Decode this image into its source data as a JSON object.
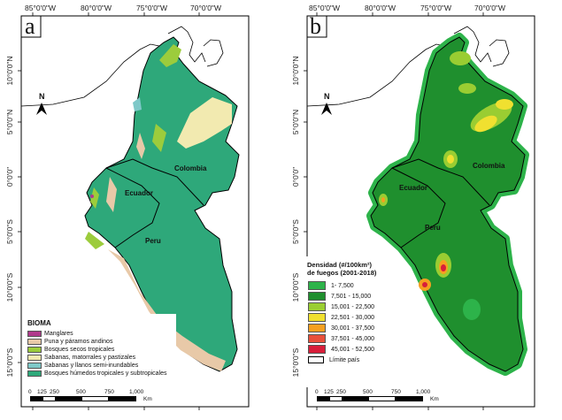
{
  "lon_ticks": [
    "85°0'0\"W",
    "80°0'0\"W",
    "75°0'0\"W",
    "70°0'0\"W"
  ],
  "lat_ticks": [
    "10°0'0\"N",
    "5°0'0\"N",
    "0°0'0\"",
    "5°0'0\"S",
    "10°0'0\"S",
    "15°0'0\"S"
  ],
  "panel_a": {
    "letter": "a",
    "north": "N",
    "labels": {
      "colombia": "Colombia",
      "ecuador": "Ecuador",
      "peru": "Peru"
    },
    "legend": {
      "title": "BIOMA",
      "items": [
        {
          "label": "Manglares",
          "color": "#b03a8c"
        },
        {
          "label": "Puna y páramos andinos",
          "color": "#e8c9a8"
        },
        {
          "label": "Bosques secos tropicales",
          "color": "#9ccc3c"
        },
        {
          "label": "Sabanas, matorrales y pastizales",
          "color": "#f2eab0"
        },
        {
          "label": "Sabanas y llanos semi-inundables",
          "color": "#7ec8c8"
        },
        {
          "label": "Bosques húmedos tropicales y subtropicales",
          "color": "#2ea87a"
        }
      ]
    },
    "scale": {
      "ticks": [
        "0",
        "125",
        "250",
        "500",
        "750",
        "1,000"
      ],
      "unit": "Km"
    }
  },
  "panel_b": {
    "letter": "b",
    "north": "N",
    "labels": {
      "colombia": "Colombia",
      "ecuador": "Ecuador",
      "peru": "Peru"
    },
    "legend": {
      "title_line1": "Densidad (#/100km²)",
      "title_line2": "de fuegos (2001-2018)",
      "items": [
        {
          "label": "1- 7,500",
          "color": "#2db34a"
        },
        {
          "label": "7,501 - 15,000",
          "color": "#1f8f2e"
        },
        {
          "label": "15,001 - 22,500",
          "color": "#9acd32"
        },
        {
          "label": "22,501 - 30,000",
          "color": "#f0e030"
        },
        {
          "label": "30,001 - 37,500",
          "color": "#f5a020"
        },
        {
          "label": "37,501 - 45,000",
          "color": "#e8503a"
        },
        {
          "label": "45,001 - 52,500",
          "color": "#d81e3a"
        }
      ],
      "boundary_label": "Límite país"
    },
    "scale": {
      "ticks": [
        "0",
        "125",
        "250",
        "500",
        "750",
        "1,000"
      ],
      "unit": "Km"
    }
  }
}
